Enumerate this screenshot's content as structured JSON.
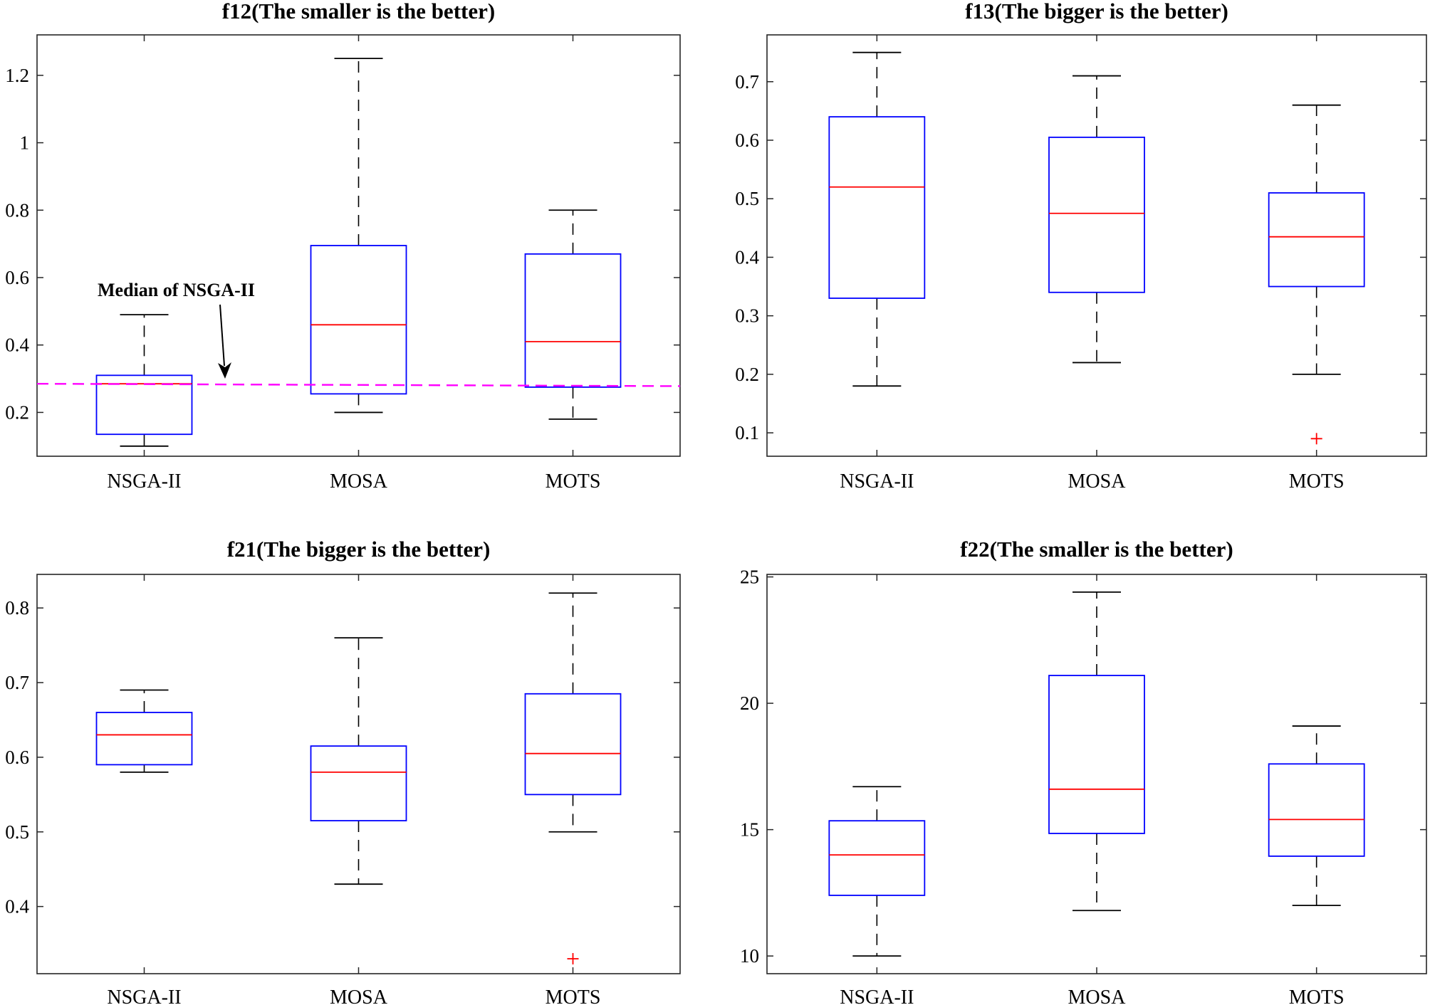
{
  "chart_data": [
    {
      "type": "box",
      "title": "f12(The smaller is the better)",
      "categories": [
        "NSGA-II",
        "MOSA",
        "MOTS"
      ],
      "ylim": [
        0.07,
        1.32
      ],
      "yticks": [
        0.2,
        0.4,
        0.6,
        0.8,
        1,
        1.2
      ],
      "ytick_labels": [
        "0.2",
        "0.4",
        "0.6",
        "0.8",
        "1",
        "1.2"
      ],
      "boxes": [
        {
          "name": "NSGA-II",
          "min": 0.1,
          "q1": 0.135,
          "median": 0.285,
          "q3": 0.31,
          "max": 0.49,
          "outliers": []
        },
        {
          "name": "MOSA",
          "min": 0.2,
          "q1": 0.255,
          "median": 0.46,
          "q3": 0.695,
          "max": 1.25,
          "outliers": []
        },
        {
          "name": "MOTS",
          "min": 0.18,
          "q1": 0.275,
          "median": 0.41,
          "q3": 0.67,
          "max": 0.8,
          "outliers": []
        }
      ],
      "reference_line": {
        "y_start": 0.285,
        "y_end": 0.278,
        "color": "#ff00ff",
        "style": "dashed"
      },
      "annotation": {
        "text": "Median of NSGA-II",
        "points_to": "reference_line"
      }
    },
    {
      "type": "box",
      "title": "f13(The bigger is the better)",
      "categories": [
        "NSGA-II",
        "MOSA",
        "MOTS"
      ],
      "ylim": [
        0.06,
        0.78
      ],
      "yticks": [
        0.1,
        0.2,
        0.3,
        0.4,
        0.5,
        0.6,
        0.7
      ],
      "ytick_labels": [
        "0.1",
        "0.2",
        "0.3",
        "0.4",
        "0.5",
        "0.6",
        "0.7"
      ],
      "boxes": [
        {
          "name": "NSGA-II",
          "min": 0.18,
          "q1": 0.33,
          "median": 0.52,
          "q3": 0.64,
          "max": 0.75,
          "outliers": []
        },
        {
          "name": "MOSA",
          "min": 0.22,
          "q1": 0.34,
          "median": 0.475,
          "q3": 0.605,
          "max": 0.71,
          "outliers": []
        },
        {
          "name": "MOTS",
          "min": 0.2,
          "q1": 0.35,
          "median": 0.435,
          "q3": 0.51,
          "max": 0.66,
          "outliers": [
            0.09
          ]
        }
      ]
    },
    {
      "type": "box",
      "title": "f21(The bigger is the better)",
      "categories": [
        "NSGA-II",
        "MOSA",
        "MOTS"
      ],
      "ylim": [
        0.31,
        0.845
      ],
      "yticks": [
        0.4,
        0.5,
        0.6,
        0.7,
        0.8
      ],
      "ytick_labels": [
        "0.4",
        "0.5",
        "0.6",
        "0.7",
        "0.8"
      ],
      "boxes": [
        {
          "name": "NSGA-II",
          "min": 0.58,
          "q1": 0.59,
          "median": 0.63,
          "q3": 0.66,
          "max": 0.69,
          "outliers": []
        },
        {
          "name": "MOSA",
          "min": 0.43,
          "q1": 0.515,
          "median": 0.58,
          "q3": 0.615,
          "max": 0.76,
          "outliers": []
        },
        {
          "name": "MOTS",
          "min": 0.5,
          "q1": 0.55,
          "median": 0.605,
          "q3": 0.685,
          "max": 0.82,
          "outliers": [
            0.33
          ]
        }
      ]
    },
    {
      "type": "box",
      "title": "f22(The smaller is the better)",
      "categories": [
        "NSGA-II",
        "MOSA",
        "MOTS"
      ],
      "ylim": [
        9.3,
        25.1
      ],
      "yticks": [
        10,
        15,
        20,
        25
      ],
      "ytick_labels": [
        "10",
        "15",
        "20",
        "25"
      ],
      "boxes": [
        {
          "name": "NSGA-II",
          "min": 10.0,
          "q1": 12.4,
          "median": 14.0,
          "q3": 15.35,
          "max": 16.7,
          "outliers": []
        },
        {
          "name": "MOSA",
          "min": 11.8,
          "q1": 14.85,
          "median": 16.6,
          "q3": 21.1,
          "max": 24.4,
          "outliers": []
        },
        {
          "name": "MOTS",
          "min": 12.0,
          "q1": 13.95,
          "median": 15.4,
          "q3": 17.6,
          "max": 19.1,
          "outliers": []
        }
      ]
    }
  ],
  "colors": {
    "box": "#0000ff",
    "median": "#ff0000",
    "whisker": "#000000",
    "outlier": "#ff0000",
    "reference": "#ff00ff"
  }
}
